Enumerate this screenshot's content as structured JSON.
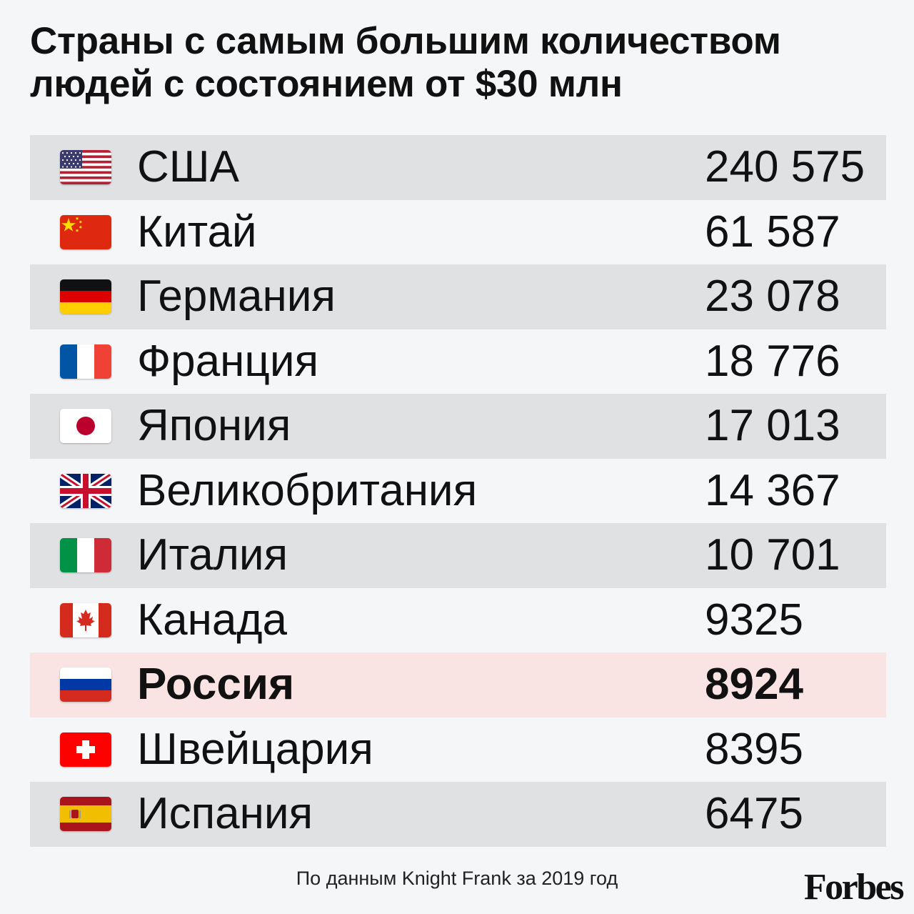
{
  "chart_data": {
    "type": "table",
    "title": "Страны с самым большим количеством людей с состоянием от $30 млн",
    "columns": [
      "country",
      "value"
    ],
    "rows": [
      {
        "flag_icon": "usa-flag-icon",
        "country": "США",
        "value": "240 575",
        "n": 240575,
        "highlight": false
      },
      {
        "flag_icon": "china-flag-icon",
        "country": "Китай",
        "value": "61 587",
        "n": 61587,
        "highlight": false
      },
      {
        "flag_icon": "germany-flag-icon",
        "country": "Германия",
        "value": "23 078",
        "n": 23078,
        "highlight": false
      },
      {
        "flag_icon": "france-flag-icon",
        "country": "Франция",
        "value": "18 776",
        "n": 18776,
        "highlight": false
      },
      {
        "flag_icon": "japan-flag-icon",
        "country": "Япония",
        "value": "17 013",
        "n": 17013,
        "highlight": false
      },
      {
        "flag_icon": "uk-flag-icon",
        "country": "Великобритания",
        "value": "14 367",
        "n": 14367,
        "highlight": false
      },
      {
        "flag_icon": "italy-flag-icon",
        "country": "Италия",
        "value": "10 701",
        "n": 10701,
        "highlight": false
      },
      {
        "flag_icon": "canada-flag-icon",
        "country": "Канада",
        "value": "9325",
        "n": 9325,
        "highlight": false
      },
      {
        "flag_icon": "russia-flag-icon",
        "country": "Россия",
        "value": "8924",
        "n": 8924,
        "highlight": true
      },
      {
        "flag_icon": "switzerland-flag-icon",
        "country": "Швейцария",
        "value": "8395",
        "n": 8395,
        "highlight": false
      },
      {
        "flag_icon": "spain-flag-icon",
        "country": "Испания",
        "value": "6475",
        "n": 6475,
        "highlight": false
      }
    ],
    "source": "По данным Knight Frank за 2019 год"
  },
  "brand": "Forbes",
  "colors": {
    "background": "#f5f6f8",
    "stripe": "#e0e1e3",
    "highlight": "#fae3e3",
    "text": "#111111"
  }
}
